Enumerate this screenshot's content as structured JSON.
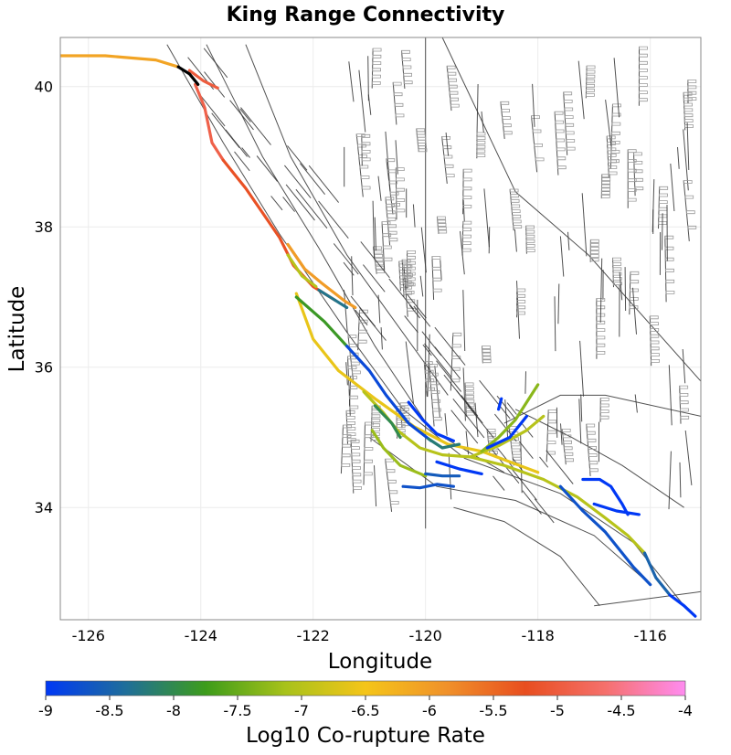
{
  "chart_data": {
    "type": "map",
    "title": "King Range Connectivity",
    "xlabel": "Longitude",
    "ylabel": "Latitude",
    "xlim": [
      -126.5,
      -115.1
    ],
    "ylim": [
      32.4,
      40.7
    ],
    "xticks": [
      -126,
      -124,
      -122,
      -120,
      -118,
      -116
    ],
    "yticks": [
      34,
      36,
      38,
      40
    ],
    "grid": true,
    "colorbar": {
      "label": "Log10 Co-rupture Rate",
      "range": [
        -9,
        -4
      ],
      "ticks": [
        "-9",
        "-8.5",
        "-8",
        "-7.5",
        "-7",
        "-6.5",
        "-6",
        "-5.5",
        "-5",
        "-4.5",
        "-4"
      ],
      "stops": [
        "#0038f5",
        "#1f6e9a",
        "#3d9c1b",
        "#a8c21b",
        "#f5c519",
        "#f0922a",
        "#e84e1f",
        "#f5706c",
        "#ff8cf0"
      ],
      "placement": "bottom"
    },
    "source_section": {
      "name": "King Range",
      "color": "#000000",
      "points": [
        [
          -124.4,
          40.28
        ],
        [
          -124.2,
          40.18
        ],
        [
          -124.05,
          40.03
        ]
      ]
    },
    "series": [
      {
        "value": -6.1,
        "points": [
          [
            -126.5,
            40.44
          ],
          [
            -125.7,
            40.44
          ],
          [
            -124.8,
            40.38
          ],
          [
            -124.4,
            40.28
          ]
        ]
      },
      {
        "value": -5.0,
        "points": [
          [
            -124.2,
            40.23
          ],
          [
            -123.95,
            40.08
          ],
          [
            -123.7,
            39.98
          ]
        ]
      },
      {
        "value": -4.9,
        "points": [
          [
            -124.1,
            40.03
          ],
          [
            -123.93,
            39.7
          ],
          [
            -123.8,
            39.2
          ],
          [
            -123.6,
            38.95
          ]
        ]
      },
      {
        "value": -5.2,
        "points": [
          [
            -123.6,
            38.95
          ],
          [
            -123.2,
            38.55
          ],
          [
            -122.9,
            38.2
          ],
          [
            -122.6,
            37.85
          ],
          [
            -122.35,
            37.45
          ],
          [
            -122.0,
            37.15
          ],
          [
            -121.6,
            36.95
          ]
        ]
      },
      {
        "value": -6.0,
        "points": [
          [
            -122.45,
            37.75
          ],
          [
            -122.15,
            37.4
          ],
          [
            -121.85,
            37.2
          ],
          [
            -121.45,
            36.95
          ],
          [
            -121.25,
            36.85
          ]
        ]
      },
      {
        "value": -7.0,
        "points": [
          [
            -122.45,
            37.6
          ],
          [
            -122.2,
            37.3
          ],
          [
            -121.95,
            37.15
          ]
        ]
      },
      {
        "value": -8.3,
        "points": [
          [
            -121.9,
            37.1
          ],
          [
            -121.6,
            36.95
          ],
          [
            -121.4,
            36.85
          ]
        ]
      },
      {
        "value": -6.6,
        "points": [
          [
            -122.3,
            37.05
          ],
          [
            -122.0,
            36.4
          ],
          [
            -121.55,
            35.95
          ],
          [
            -120.9,
            35.55
          ],
          [
            -120.2,
            35.15
          ],
          [
            -119.6,
            34.9
          ],
          [
            -119.0,
            34.8
          ],
          [
            -118.0,
            34.5
          ]
        ]
      },
      {
        "value": -7.8,
        "points": [
          [
            -122.3,
            37.0
          ],
          [
            -121.8,
            36.65
          ],
          [
            -121.4,
            36.3
          ]
        ]
      },
      {
        "value": -8.8,
        "points": [
          [
            -121.4,
            36.3
          ],
          [
            -121.0,
            35.95
          ],
          [
            -120.7,
            35.6
          ],
          [
            -120.3,
            35.2
          ],
          [
            -119.9,
            34.95
          ]
        ]
      },
      {
        "value": -7.0,
        "points": [
          [
            -121.1,
            35.65
          ],
          [
            -120.75,
            35.35
          ],
          [
            -120.5,
            35.1
          ],
          [
            -120.1,
            34.85
          ],
          [
            -119.7,
            34.75
          ],
          [
            -119.2,
            34.72
          ],
          [
            -118.7,
            34.88
          ],
          [
            -118.2,
            35.1
          ],
          [
            -117.9,
            35.3
          ]
        ]
      },
      {
        "value": -7.0,
        "points": [
          [
            -119.2,
            34.72
          ],
          [
            -118.6,
            34.6
          ],
          [
            -117.9,
            34.4
          ],
          [
            -117.3,
            34.15
          ],
          [
            -116.8,
            33.85
          ],
          [
            -116.4,
            33.6
          ],
          [
            -116.1,
            33.35
          ]
        ]
      },
      {
        "value": -8.5,
        "points": [
          [
            -116.1,
            33.35
          ],
          [
            -115.9,
            33.0
          ],
          [
            -115.65,
            32.75
          ]
        ]
      },
      {
        "value": -9.0,
        "points": [
          [
            -115.65,
            32.75
          ],
          [
            -115.4,
            32.6
          ],
          [
            -115.2,
            32.45
          ]
        ]
      },
      {
        "value": -8.7,
        "points": [
          [
            -117.6,
            34.3
          ],
          [
            -117.2,
            33.95
          ],
          [
            -116.8,
            33.65
          ],
          [
            -116.3,
            33.15
          ],
          [
            -116.0,
            32.9
          ]
        ]
      },
      {
        "value": -7.3,
        "points": [
          [
            -119.0,
            34.8
          ],
          [
            -118.7,
            35.0
          ],
          [
            -118.4,
            35.25
          ],
          [
            -118.0,
            35.75
          ]
        ]
      },
      {
        "value": -9.0,
        "points": [
          [
            -118.9,
            34.85
          ],
          [
            -118.5,
            35.0
          ],
          [
            -118.2,
            35.3
          ]
        ]
      },
      {
        "value": -8.0,
        "points": [
          [
            -120.9,
            35.45
          ],
          [
            -120.6,
            35.2
          ],
          [
            -120.45,
            35.0
          ]
        ]
      },
      {
        "value": -7.2,
        "points": [
          [
            -120.95,
            35.1
          ],
          [
            -120.75,
            34.85
          ],
          [
            -120.45,
            34.6
          ],
          [
            -120.0,
            34.45
          ]
        ]
      },
      {
        "value": -8.6,
        "points": [
          [
            -120.0,
            34.48
          ],
          [
            -119.7,
            34.45
          ],
          [
            -119.4,
            34.45
          ]
        ]
      },
      {
        "value": -9.0,
        "points": [
          [
            -119.8,
            34.65
          ],
          [
            -119.4,
            34.55
          ],
          [
            -119.0,
            34.48
          ]
        ]
      },
      {
        "value": -9.0,
        "points": [
          [
            -120.3,
            35.5
          ],
          [
            -120.05,
            35.25
          ],
          [
            -119.8,
            35.05
          ],
          [
            -119.5,
            34.95
          ]
        ]
      },
      {
        "value": -8.2,
        "points": [
          [
            -119.95,
            34.98
          ],
          [
            -119.7,
            34.85
          ],
          [
            -119.4,
            34.9
          ]
        ]
      },
      {
        "value": -8.7,
        "points": [
          [
            -120.4,
            34.3
          ],
          [
            -120.1,
            34.28
          ],
          [
            -119.8,
            34.33
          ],
          [
            -119.5,
            34.3
          ]
        ]
      },
      {
        "value": -9.0,
        "points": [
          [
            -117.2,
            34.4
          ],
          [
            -116.9,
            34.4
          ],
          [
            -116.7,
            34.3
          ],
          [
            -116.5,
            34.05
          ],
          [
            -116.4,
            33.9
          ]
        ]
      },
      {
        "value": -9.0,
        "points": [
          [
            -117.0,
            34.05
          ],
          [
            -116.6,
            33.95
          ],
          [
            -116.2,
            33.9
          ]
        ]
      },
      {
        "value": -9.0,
        "points": [
          [
            -118.7,
            35.4
          ],
          [
            -118.65,
            35.55
          ]
        ]
      }
    ]
  }
}
